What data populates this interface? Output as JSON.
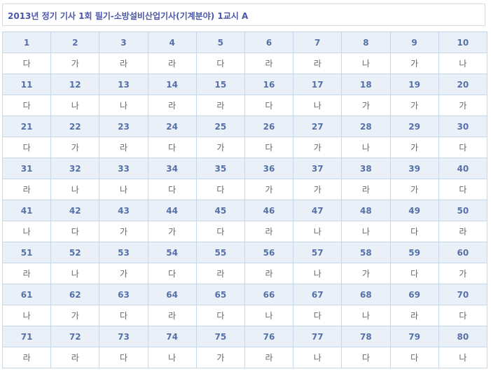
{
  "title": "2013년 정기 기사 1회 필기-소방설비산업기사(기계분야) 1교시 A",
  "colors": {
    "header_bg": "#eaf0f8",
    "number_text": "#5671a8",
    "border": "#c5d7ea",
    "title_text": "#4a57a8"
  },
  "answers": [
    "다",
    "가",
    "라",
    "라",
    "다",
    "라",
    "라",
    "나",
    "가",
    "나",
    "다",
    "나",
    "나",
    "라",
    "라",
    "다",
    "나",
    "가",
    "가",
    "가",
    "다",
    "가",
    "라",
    "다",
    "가",
    "다",
    "가",
    "나",
    "가",
    "다",
    "라",
    "나",
    "나",
    "다",
    "다",
    "가",
    "가",
    "라",
    "가",
    "다",
    "나",
    "다",
    "가",
    "가",
    "다",
    "라",
    "나",
    "나",
    "다",
    "라",
    "라",
    "나",
    "가",
    "다",
    "라",
    "라",
    "나",
    "가",
    "다",
    "가",
    "나",
    "가",
    "다",
    "라",
    "다",
    "나",
    "다",
    "나",
    "라",
    "다",
    "라",
    "라",
    "다",
    "나",
    "가",
    "라",
    "나",
    "다",
    "다",
    "나"
  ],
  "numbers": [
    "1",
    "2",
    "3",
    "4",
    "5",
    "6",
    "7",
    "8",
    "9",
    "10",
    "11",
    "12",
    "13",
    "14",
    "15",
    "16",
    "17",
    "18",
    "19",
    "20",
    "21",
    "22",
    "23",
    "24",
    "25",
    "26",
    "27",
    "28",
    "29",
    "30",
    "31",
    "32",
    "33",
    "34",
    "35",
    "36",
    "37",
    "38",
    "39",
    "40",
    "41",
    "42",
    "43",
    "44",
    "45",
    "46",
    "47",
    "48",
    "49",
    "50",
    "51",
    "52",
    "53",
    "54",
    "55",
    "56",
    "57",
    "58",
    "59",
    "60",
    "61",
    "62",
    "63",
    "64",
    "65",
    "66",
    "67",
    "68",
    "69",
    "70",
    "71",
    "72",
    "73",
    "74",
    "75",
    "76",
    "77",
    "78",
    "79",
    "80"
  ]
}
